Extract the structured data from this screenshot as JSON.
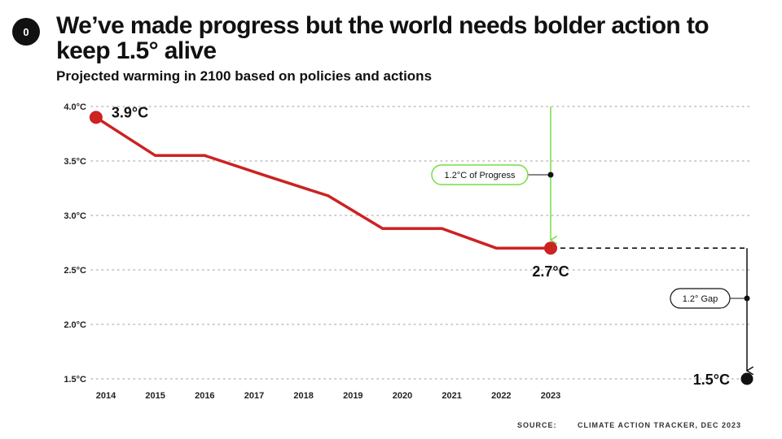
{
  "badge": "0",
  "title": "We’ve made progress but the world needs bolder action to keep 1.5° alive",
  "subtitle": "Projected warming in 2100 based on policies and actions",
  "source_label": "SOURCE:",
  "source_value": "CLIMATE ACTION TRACKER, DEC 2023",
  "colors": {
    "line": "#cc2222",
    "progress": "#77dd44",
    "gap": "#111111",
    "grid": "#bbbbbb"
  },
  "chart_data": {
    "type": "line",
    "title": "Projected warming in 2100 based on policies and actions",
    "x_ticks": [
      "2014",
      "2015",
      "2016",
      "2017",
      "2018",
      "2019",
      "2020",
      "2021",
      "2022",
      "2023"
    ],
    "y_ticks": [
      "4.0°C",
      "3.5°C",
      "3.0°C",
      "2.5°C",
      "2.0°C",
      "1.5°C"
    ],
    "y_tick_values": [
      4.0,
      3.5,
      3.0,
      2.5,
      2.0,
      1.5
    ],
    "ylim": [
      1.5,
      4.0
    ],
    "xlim": [
      2014,
      2023
    ],
    "grid": true,
    "series": [
      {
        "x": [
          2013.8,
          2015,
          2016,
          2017.2,
          2018.5,
          2019.6,
          2020.8,
          2021.9,
          2023
        ],
        "values": [
          3.9,
          3.55,
          3.55,
          3.37,
          3.18,
          2.88,
          2.88,
          2.7,
          2.7
        ]
      }
    ],
    "annotations": {
      "start_value": "3.9°C",
      "end_value": "2.7°C",
      "target_value": "1.5°C",
      "target": 1.5,
      "progress_label": "1.2°C of Progress",
      "gap_label": "1.2° Gap"
    }
  }
}
